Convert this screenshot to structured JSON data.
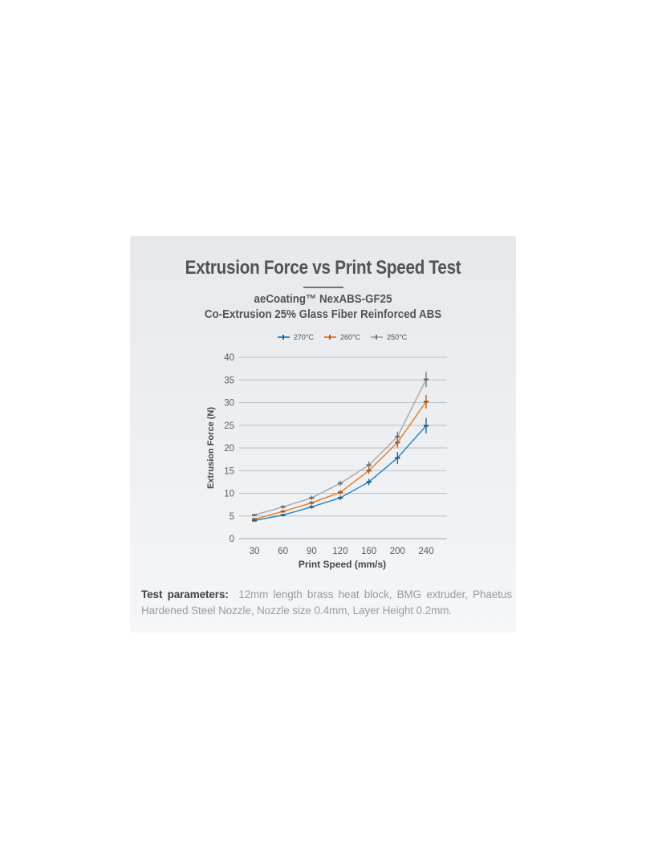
{
  "card": {
    "title": "Extrusion Force vs Print Speed Test",
    "subtitle_line1": "aeCoating™ NexABS-GF25",
    "subtitle_line2": "Co-Extrusion 25% Glass Fiber Reinforced ABS"
  },
  "chart_data": {
    "type": "line",
    "title": "Extrusion Force vs Print Speed Test",
    "xlabel": "Print Speed (mm/s)",
    "ylabel": "Extrusion Force (N)",
    "categories": [
      "30",
      "60",
      "90",
      "120",
      "160",
      "200",
      "240"
    ],
    "ylim": [
      0,
      40
    ],
    "ytick_step": 5,
    "grid": "horizontal",
    "legend_position": "top",
    "error_bars": true,
    "series": [
      {
        "name": "270°C",
        "color": "#2e87c3",
        "error_color": "#23618d",
        "values": [
          4.0,
          5.2,
          7.0,
          9.0,
          12.5,
          17.8,
          24.9
        ],
        "errors": [
          0.3,
          0.3,
          0.4,
          0.5,
          0.7,
          1.3,
          1.7
        ]
      },
      {
        "name": "260°C",
        "color": "#e8802e",
        "error_color": "#a85a1e",
        "values": [
          4.3,
          6.0,
          7.9,
          10.2,
          15.0,
          21.2,
          30.2
        ],
        "errors": [
          0.3,
          0.3,
          0.4,
          0.5,
          0.7,
          1.1,
          1.5
        ]
      },
      {
        "name": "250°C",
        "color": "#a9abad",
        "error_color": "#6f7275",
        "values": [
          5.2,
          7.0,
          9.0,
          12.2,
          16.2,
          22.5,
          35.1
        ],
        "errors": [
          0.3,
          0.4,
          0.5,
          0.6,
          0.8,
          1.1,
          1.7
        ]
      }
    ],
    "grid_color": "#bcbfc2",
    "baseline_color": "#a0a3a6",
    "tick_label_color": "#5a5e62"
  },
  "footer": {
    "label_bold": "Test parameters:",
    "line1_rest": "12mm length brass heat block, BMG extruder, Phaetus",
    "line2": "Hardened Steel Nozzle, Nozzle size 0.4mm, Layer Height 0.2mm."
  }
}
